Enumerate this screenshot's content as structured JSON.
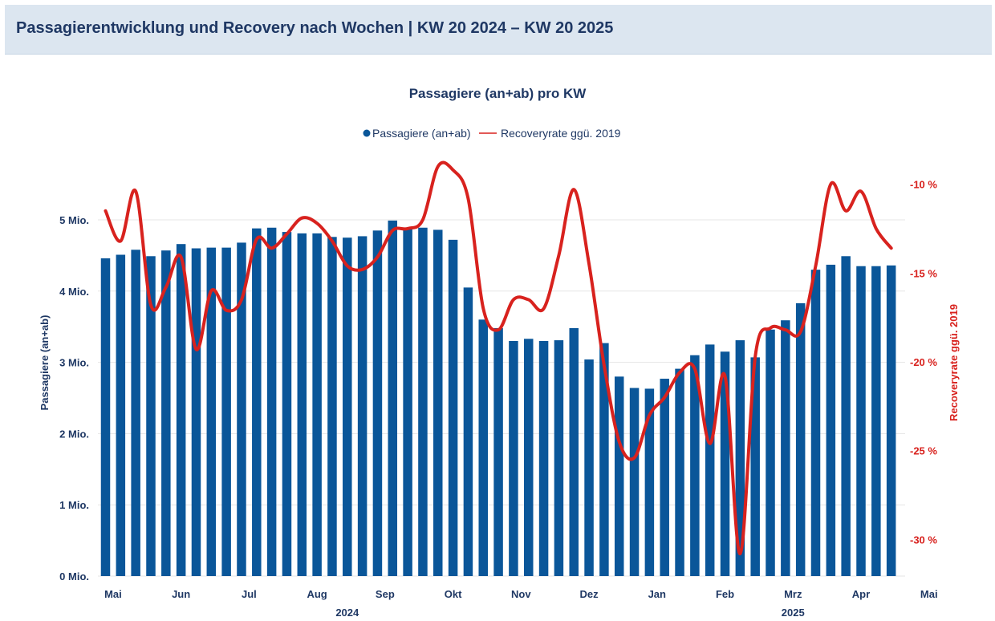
{
  "header": {
    "title": "Passagierentwicklung und Recovery nach Wochen | KW 20 2024 – KW 20 2025"
  },
  "colors": {
    "bar": "#0a5699",
    "line": "#d8221e",
    "text": "#1f3864",
    "header_bg": "#dce6f0"
  },
  "chart_data": {
    "type": "bar",
    "title": "Passagiere (an+ab) pro KW",
    "legend_position": "top",
    "legend": [
      "Passagiere (an+ab)",
      "Recoveryrate ggü. 2019"
    ],
    "ylabel": "Passagiere (an+ab)",
    "y2label": "Recoveryrate ggü. 2019",
    "ylim": [
      0,
      5.5
    ],
    "y2lim": [
      -32,
      -7
    ],
    "yticks": [
      "0 Mio.",
      "1 Mio.",
      "2 Mio.",
      "3 Mio.",
      "4 Mio.",
      "5 Mio."
    ],
    "y2ticks": [
      "-10 %",
      "-15 %",
      "-20 %",
      "-25 %",
      "-30 %"
    ],
    "month_labels": [
      {
        "label": "Mai",
        "week": 1.5
      },
      {
        "label": "Jun",
        "week": 6.0
      },
      {
        "label": "Jul",
        "week": 10.5
      },
      {
        "label": "Aug",
        "week": 15.0
      },
      {
        "label": "Sep",
        "week": 19.5
      },
      {
        "label": "Okt",
        "week": 24.0
      },
      {
        "label": "Nov",
        "week": 28.5
      },
      {
        "label": "Dez",
        "week": 33.0
      },
      {
        "label": "Jan",
        "week": 37.5
      },
      {
        "label": "Feb",
        "week": 42.0
      },
      {
        "label": "Mrz",
        "week": 46.5
      },
      {
        "label": "Apr",
        "week": 51.0
      },
      {
        "label": "Mai",
        "week": 55.5
      }
    ],
    "year_labels": [
      {
        "label": "2024",
        "week": 17.0
      },
      {
        "label": "2025",
        "week": 46.5
      }
    ],
    "grid": true,
    "series": [
      {
        "name": "Passagiere (an+ab)",
        "type": "bar",
        "axis": "left",
        "unit": "Mio.",
        "values": [
          4.46,
          4.51,
          4.58,
          4.49,
          4.57,
          4.66,
          4.6,
          4.61,
          4.61,
          4.68,
          4.88,
          4.89,
          4.83,
          4.81,
          4.81,
          4.76,
          4.75,
          4.77,
          4.85,
          4.99,
          4.89,
          4.89,
          4.86,
          4.72,
          4.05,
          3.6,
          3.48,
          3.3,
          3.33,
          3.3,
          3.31,
          3.48,
          3.04,
          3.27,
          2.8,
          2.64,
          2.63,
          2.77,
          2.91,
          3.1,
          3.25,
          3.15,
          3.31,
          3.07,
          3.46,
          3.59,
          3.83,
          4.3,
          4.37,
          4.49,
          4.35,
          4.35,
          4.36
        ]
      },
      {
        "name": "Recoveryrate ggü. 2019",
        "type": "line",
        "axis": "right",
        "unit": "%",
        "values": [
          -11.5,
          -13.2,
          -10.4,
          -16.8,
          -15.8,
          -14.1,
          -19.3,
          -16.0,
          -17.1,
          -16.5,
          -13.1,
          -13.6,
          -12.8,
          -11.9,
          -12.2,
          -13.2,
          -14.6,
          -14.8,
          -14.1,
          -12.6,
          -12.5,
          -12.0,
          -9.0,
          -9.2,
          -10.8,
          -17.0,
          -18.2,
          -16.5,
          -16.5,
          -17.0,
          -14.0,
          -10.3,
          -14.5,
          -20.2,
          -24.5,
          -25.4,
          -23.0,
          -22.0,
          -20.6,
          -20.4,
          -24.6,
          -20.8,
          -30.8,
          -19.7,
          -18.1,
          -18.2,
          -18.3,
          -14.6,
          -10.0,
          -11.5,
          -10.4,
          -12.5,
          -13.6
        ]
      }
    ]
  }
}
